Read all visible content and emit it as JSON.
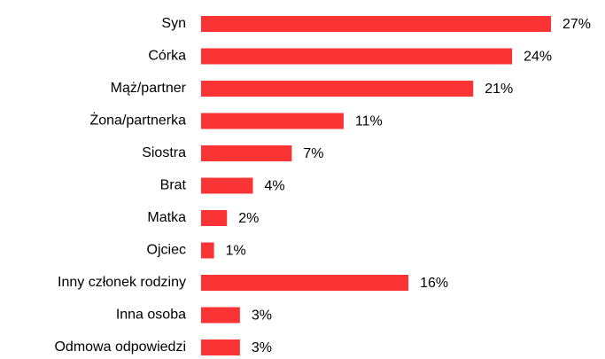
{
  "chart_data": {
    "type": "bar",
    "orientation": "horizontal",
    "categories": [
      "Syn",
      "Córka",
      "Mąż/partner",
      "Żona/partnerka",
      "Siostra",
      "Brat",
      "Matka",
      "Ojciec",
      "Inny członek rodziny",
      "Inna osoba",
      "Odmowa odpowiedzi"
    ],
    "values": [
      27,
      24,
      21,
      11,
      7,
      4,
      2,
      1,
      16,
      3,
      3
    ],
    "value_labels": [
      "27%",
      "24%",
      "21%",
      "11%",
      "7%",
      "4%",
      "2%",
      "1%",
      "16%",
      "3%",
      "3%"
    ],
    "color": "#fa3434"
  }
}
